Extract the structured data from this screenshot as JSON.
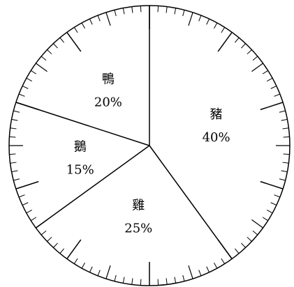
{
  "chart_data": {
    "type": "pie",
    "start_angle_deg": 0,
    "direction": "clockwise",
    "labels_inside": true,
    "legend": "none",
    "dial_ticks": {
      "minor_step_deg": 3.6,
      "mid_every": 5,
      "major_every": 10
    },
    "slices": [
      {
        "name": "豬",
        "value": 40,
        "percent_label": "40%"
      },
      {
        "name": "雞",
        "value": 25,
        "percent_label": "25%"
      },
      {
        "name": "鵝",
        "value": 15,
        "percent_label": "15%"
      },
      {
        "name": "鴨",
        "value": 20,
        "percent_label": "20%"
      }
    ]
  },
  "colors": {
    "stroke": "#000000",
    "fill": "#ffffff"
  }
}
